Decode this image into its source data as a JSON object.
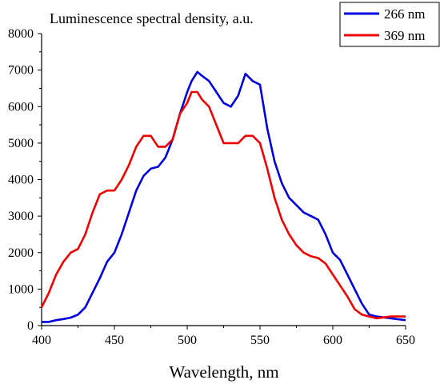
{
  "chart_data": {
    "type": "line",
    "title": "Luminescence spectral density, a.u.",
    "xlabel": "Wavelength, nm",
    "ylabel": "",
    "xlim": [
      400,
      650
    ],
    "ylim": [
      0,
      8000
    ],
    "xticks": [
      400,
      450,
      500,
      550,
      600,
      650
    ],
    "yticks": [
      0,
      1000,
      2000,
      3000,
      4000,
      5000,
      6000,
      7000,
      8000
    ],
    "grid": false,
    "legend_position": "top-right",
    "series": [
      {
        "name": "266 nm",
        "color": "#0000dd",
        "x": [
          400,
          405,
          410,
          415,
          420,
          425,
          430,
          435,
          440,
          445,
          450,
          455,
          460,
          465,
          470,
          475,
          480,
          485,
          490,
          495,
          500,
          503,
          507,
          510,
          515,
          520,
          525,
          530,
          535,
          540,
          545,
          550,
          555,
          560,
          565,
          570,
          575,
          580,
          585,
          590,
          595,
          600,
          605,
          610,
          615,
          620,
          625,
          630,
          640,
          650
        ],
        "y": [
          100,
          100,
          150,
          180,
          220,
          300,
          500,
          900,
          1300,
          1750,
          2000,
          2500,
          3100,
          3700,
          4100,
          4300,
          4350,
          4600,
          5100,
          5800,
          6400,
          6700,
          6950,
          6850,
          6700,
          6400,
          6100,
          6000,
          6300,
          6900,
          6700,
          6600,
          5400,
          4500,
          3900,
          3500,
          3300,
          3100,
          3000,
          2900,
          2500,
          2000,
          1800,
          1400,
          1000,
          600,
          300,
          250,
          200,
          150
        ]
      },
      {
        "name": "369 nm",
        "color": "#ee0000",
        "x": [
          400,
          405,
          410,
          415,
          420,
          425,
          430,
          435,
          440,
          445,
          450,
          455,
          460,
          465,
          470,
          475,
          480,
          485,
          490,
          495,
          500,
          503,
          507,
          510,
          515,
          520,
          525,
          530,
          535,
          540,
          545,
          550,
          555,
          560,
          565,
          570,
          575,
          580,
          585,
          590,
          595,
          600,
          605,
          610,
          615,
          620,
          625,
          630,
          640,
          650
        ],
        "y": [
          500,
          900,
          1400,
          1750,
          2000,
          2100,
          2500,
          3100,
          3600,
          3700,
          3700,
          4000,
          4400,
          4900,
          5200,
          5200,
          4900,
          4900,
          5100,
          5800,
          6100,
          6400,
          6400,
          6200,
          6000,
          5500,
          5000,
          5000,
          5000,
          5200,
          5200,
          5000,
          4300,
          3500,
          2900,
          2500,
          2200,
          2000,
          1900,
          1850,
          1700,
          1400,
          1100,
          800,
          450,
          300,
          250,
          200,
          250,
          250
        ]
      }
    ]
  }
}
